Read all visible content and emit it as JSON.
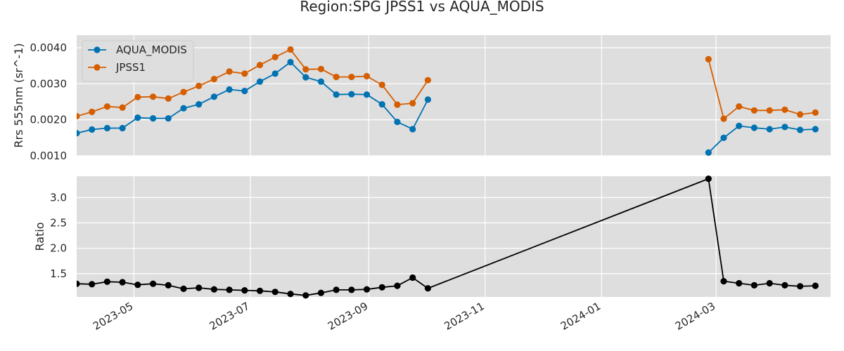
{
  "chart_data": {
    "title": "Region:SPG JPSS1 vs AQUA_MODIS",
    "colors": {
      "AQUA_MODIS": "#0072b2",
      "JPSS1": "#d55e00",
      "Ratio": "#000000",
      "panel_bg": "#dedede",
      "grid": "#ffffff"
    },
    "x_ticks": [
      "2023-05",
      "2023-07",
      "2023-09",
      "2023-11",
      "2024-01",
      "2024-03"
    ],
    "xlim": [
      "2023-04-01",
      "2024-04-30"
    ],
    "grid": true,
    "panels": [
      {
        "type": "line",
        "ylabel": "Rrs 555nm (sr^-1)",
        "ylim": [
          0.001,
          0.00435
        ],
        "yticks": [
          "0.0010",
          "0.0020",
          "0.0030",
          "0.0040"
        ],
        "legend": "top-left",
        "series": [
          {
            "name": "AQUA_MODIS",
            "segments": [
              [
                [
                  "2023-04-01",
                  0.00163
                ],
                [
                  "2023-04-09",
                  0.00173
                ],
                [
                  "2023-04-17",
                  0.00177
                ],
                [
                  "2023-04-25",
                  0.00177
                ],
                [
                  "2023-05-03",
                  0.00206
                ],
                [
                  "2023-05-11",
                  0.00204
                ],
                [
                  "2023-05-19",
                  0.00204
                ],
                [
                  "2023-05-27",
                  0.00232
                ],
                [
                  "2023-06-04",
                  0.00243
                ],
                [
                  "2023-06-12",
                  0.00264
                ],
                [
                  "2023-06-20",
                  0.00284
                ],
                [
                  "2023-06-28",
                  0.0028
                ],
                [
                  "2023-07-06",
                  0.00306
                ],
                [
                  "2023-07-14",
                  0.00328
                ],
                [
                  "2023-07-22",
                  0.0036
                ],
                [
                  "2023-07-30",
                  0.00318
                ],
                [
                  "2023-08-07",
                  0.00306
                ],
                [
                  "2023-08-15",
                  0.0027
                ],
                [
                  "2023-08-23",
                  0.00271
                ],
                [
                  "2023-08-31",
                  0.0027
                ],
                [
                  "2023-09-08",
                  0.00243
                ],
                [
                  "2023-09-16",
                  0.00194
                ],
                [
                  "2023-09-24",
                  0.00174
                ],
                [
                  "2023-10-02",
                  0.00256
                ]
              ],
              [
                [
                  "2024-02-26",
                  0.00109
                ],
                [
                  "2024-03-05",
                  0.0015
                ],
                [
                  "2024-03-13",
                  0.00183
                ],
                [
                  "2024-03-21",
                  0.00178
                ],
                [
                  "2024-03-29",
                  0.00174
                ],
                [
                  "2024-04-06",
                  0.0018
                ],
                [
                  "2024-04-14",
                  0.00172
                ],
                [
                  "2024-04-22",
                  0.00174
                ]
              ]
            ]
          },
          {
            "name": "JPSS1",
            "segments": [
              [
                [
                  "2023-04-01",
                  0.0021
                ],
                [
                  "2023-04-09",
                  0.00222
                ],
                [
                  "2023-04-17",
                  0.00237
                ],
                [
                  "2023-04-25",
                  0.00234
                ],
                [
                  "2023-05-03",
                  0.00263
                ],
                [
                  "2023-05-11",
                  0.00264
                ],
                [
                  "2023-05-19",
                  0.00259
                ],
                [
                  "2023-05-27",
                  0.00277
                ],
                [
                  "2023-06-04",
                  0.00294
                ],
                [
                  "2023-06-12",
                  0.00313
                ],
                [
                  "2023-06-20",
                  0.00334
                ],
                [
                  "2023-06-28",
                  0.00328
                ],
                [
                  "2023-07-06",
                  0.00352
                ],
                [
                  "2023-07-14",
                  0.00374
                ],
                [
                  "2023-07-22",
                  0.00395
                ],
                [
                  "2023-07-30",
                  0.0034
                ],
                [
                  "2023-08-07",
                  0.00341
                ],
                [
                  "2023-08-15",
                  0.00319
                ],
                [
                  "2023-08-23",
                  0.00319
                ],
                [
                  "2023-08-31",
                  0.00321
                ],
                [
                  "2023-09-08",
                  0.00297
                ],
                [
                  "2023-09-16",
                  0.00242
                ],
                [
                  "2023-09-24",
                  0.00246
                ],
                [
                  "2023-10-02",
                  0.0031
                ]
              ],
              [
                [
                  "2024-02-26",
                  0.00368
                ],
                [
                  "2024-03-05",
                  0.00203
                ],
                [
                  "2024-03-13",
                  0.00237
                ],
                [
                  "2024-03-21",
                  0.00226
                ],
                [
                  "2024-03-29",
                  0.00226
                ],
                [
                  "2024-04-06",
                  0.00228
                ],
                [
                  "2024-04-14",
                  0.00215
                ],
                [
                  "2024-04-22",
                  0.0022
                ]
              ]
            ]
          }
        ]
      },
      {
        "type": "line",
        "ylabel": "Ratio",
        "ylim": [
          1.04,
          3.42
        ],
        "yticks": [
          "1.5",
          "2.0",
          "2.5",
          "3.0"
        ],
        "series": [
          {
            "name": "",
            "segments": [
              [
                [
                  "2023-04-01",
                  1.3
                ],
                [
                  "2023-04-09",
                  1.29
                ],
                [
                  "2023-04-17",
                  1.34
                ],
                [
                  "2023-04-25",
                  1.33
                ],
                [
                  "2023-05-03",
                  1.28
                ],
                [
                  "2023-05-11",
                  1.3
                ],
                [
                  "2023-05-19",
                  1.27
                ],
                [
                  "2023-05-27",
                  1.2
                ],
                [
                  "2023-06-04",
                  1.22
                ],
                [
                  "2023-06-12",
                  1.19
                ],
                [
                  "2023-06-20",
                  1.18
                ],
                [
                  "2023-06-28",
                  1.17
                ],
                [
                  "2023-07-06",
                  1.16
                ],
                [
                  "2023-07-14",
                  1.14
                ],
                [
                  "2023-07-22",
                  1.1
                ],
                [
                  "2023-07-30",
                  1.07
                ],
                [
                  "2023-08-07",
                  1.12
                ],
                [
                  "2023-08-15",
                  1.18
                ],
                [
                  "2023-08-23",
                  1.18
                ],
                [
                  "2023-08-31",
                  1.19
                ],
                [
                  "2023-09-08",
                  1.23
                ],
                [
                  "2023-09-16",
                  1.26
                ],
                [
                  "2023-09-24",
                  1.42
                ],
                [
                  "2023-10-02",
                  1.21
                ],
                [
                  "2024-02-26",
                  3.37
                ],
                [
                  "2024-03-05",
                  1.35
                ],
                [
                  "2024-03-13",
                  1.31
                ],
                [
                  "2024-03-21",
                  1.27
                ],
                [
                  "2024-03-29",
                  1.31
                ],
                [
                  "2024-04-06",
                  1.27
                ],
                [
                  "2024-04-14",
                  1.25
                ],
                [
                  "2024-04-22",
                  1.26
                ]
              ]
            ]
          }
        ]
      }
    ]
  }
}
